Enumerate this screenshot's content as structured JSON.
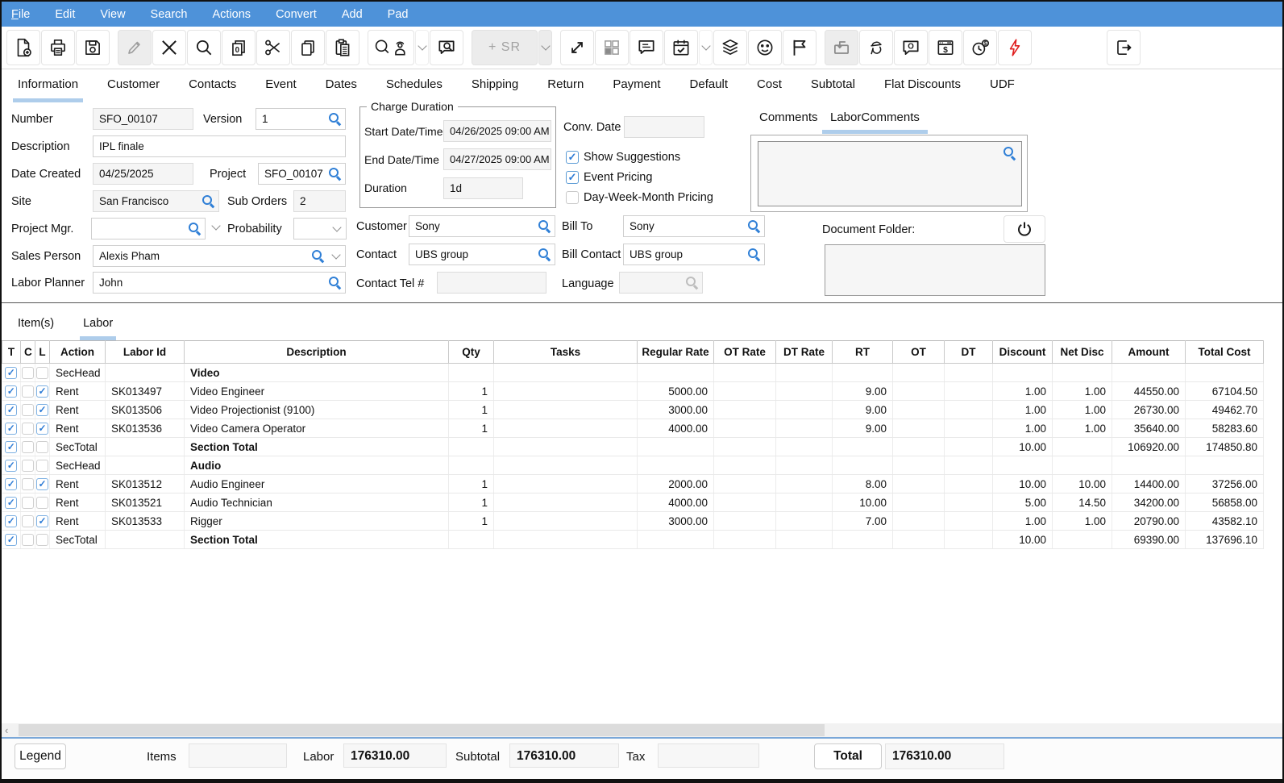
{
  "menu": {
    "items": [
      "File",
      "Edit",
      "View",
      "Search",
      "Actions",
      "Convert",
      "Add",
      "Pad"
    ]
  },
  "toolbar": {
    "sr_label": "+ SR"
  },
  "main_tabs": [
    "Information",
    "Customer",
    "Contacts",
    "Event",
    "Dates",
    "Schedules",
    "Shipping",
    "Return",
    "Payment",
    "Default",
    "Cost",
    "Subtotal",
    "Flat Discounts",
    "UDF"
  ],
  "active_main_tab": "Information",
  "form": {
    "number": {
      "label": "Number",
      "value": "SFO_00107"
    },
    "version": {
      "label": "Version",
      "value": "1"
    },
    "description": {
      "label": "Description",
      "value": "IPL finale"
    },
    "date_created": {
      "label": "Date Created",
      "value": "04/25/2025"
    },
    "project": {
      "label": "Project",
      "value": "SFO_00107"
    },
    "site": {
      "label": "Site",
      "value": "San Francisco"
    },
    "sub_orders": {
      "label": "Sub Orders",
      "value": "2"
    },
    "project_mgr": {
      "label": "Project Mgr.",
      "value": ""
    },
    "probability": {
      "label": "Probability",
      "value": ""
    },
    "sales_person": {
      "label": "Sales Person",
      "value": "Alexis Pham"
    },
    "labor_planner": {
      "label": "Labor Planner",
      "value": "John"
    }
  },
  "charge_duration": {
    "legend": "Charge Duration",
    "start": {
      "label": "Start Date/Time",
      "value": "04/26/2025 09:00 AM"
    },
    "end": {
      "label": "End Date/Time",
      "value": "04/27/2025 09:00 AM"
    },
    "duration": {
      "label": "Duration",
      "value": "1d"
    }
  },
  "options": {
    "conv_date": {
      "label": "Conv. Date",
      "value": ""
    },
    "checkboxes": [
      {
        "label": "Show Suggestions",
        "checked": true
      },
      {
        "label": "Event Pricing",
        "checked": true
      },
      {
        "label": "Day-Week-Month Pricing",
        "checked": false
      }
    ]
  },
  "parties": {
    "customer": {
      "label": "Customer",
      "value": "Sony"
    },
    "contact": {
      "label": "Contact",
      "value": "UBS group"
    },
    "contact_tel": {
      "label": "Contact Tel #",
      "value": ""
    },
    "bill_to": {
      "label": "Bill To",
      "value": "Sony"
    },
    "bill_contact": {
      "label": "Bill Contact",
      "value": "UBS group"
    },
    "language": {
      "label": "Language",
      "value": ""
    }
  },
  "comments": {
    "tabs": [
      "Comments",
      "LaborComments"
    ],
    "active_tab": "LaborComments",
    "text": "",
    "document_folder_label": "Document Folder:",
    "document_folder_value": ""
  },
  "detail_tabs": [
    "Item(s)",
    "Labor"
  ],
  "active_detail_tab": "Labor",
  "table": {
    "columns": [
      "T",
      "C",
      "L",
      "Action",
      "Labor Id",
      "Description",
      "Qty",
      "Tasks",
      "Regular Rate",
      "OT Rate",
      "DT Rate",
      "RT",
      "OT",
      "DT",
      "Discount",
      "Net Disc",
      "Amount",
      "Total Cost"
    ],
    "rows": [
      {
        "t": true,
        "c": false,
        "l": false,
        "action": "SecHead",
        "description": "Video",
        "section": true
      },
      {
        "t": true,
        "c": false,
        "l": true,
        "action": "Rent",
        "labor_id": "SK013497",
        "description": "Video Engineer",
        "qty": "1",
        "regular_rate": "5000.00",
        "rt": "9.00",
        "discount": "1.00",
        "net_disc": "1.00",
        "amount": "44550.00",
        "total_cost": "67104.50"
      },
      {
        "t": true,
        "c": false,
        "l": true,
        "action": "Rent",
        "labor_id": "SK013506",
        "description": "Video Projectionist (9100)",
        "qty": "1",
        "regular_rate": "3000.00",
        "rt": "9.00",
        "discount": "1.00",
        "net_disc": "1.00",
        "amount": "26730.00",
        "total_cost": "49462.70"
      },
      {
        "t": true,
        "c": false,
        "l": true,
        "action": "Rent",
        "labor_id": "SK013536",
        "description": "Video Camera Operator",
        "qty": "1",
        "regular_rate": "4000.00",
        "rt": "9.00",
        "discount": "1.00",
        "net_disc": "1.00",
        "amount": "35640.00",
        "total_cost": "58283.60"
      },
      {
        "t": true,
        "c": false,
        "l": false,
        "action": "SecTotal",
        "description": "Section Total",
        "section": true,
        "discount": "10.00",
        "amount": "106920.00",
        "total_cost": "174850.80"
      },
      {
        "t": true,
        "c": false,
        "l": false,
        "action": "SecHead",
        "description": "Audio",
        "section": true
      },
      {
        "t": true,
        "c": false,
        "l": true,
        "action": "Rent",
        "labor_id": "SK013512",
        "description": "Audio Engineer",
        "qty": "1",
        "regular_rate": "2000.00",
        "rt": "8.00",
        "discount": "10.00",
        "net_disc": "10.00",
        "amount": "14400.00",
        "total_cost": "37256.00"
      },
      {
        "t": true,
        "c": false,
        "l": false,
        "action": "Rent",
        "labor_id": "SK013521",
        "description": "Audio Technician",
        "qty": "1",
        "regular_rate": "4000.00",
        "rt": "10.00",
        "discount": "5.00",
        "net_disc": "14.50",
        "amount": "34200.00",
        "total_cost": "56858.00"
      },
      {
        "t": true,
        "c": false,
        "l": true,
        "action": "Rent",
        "labor_id": "SK013533",
        "description": "Rigger",
        "qty": "1",
        "regular_rate": "3000.00",
        "rt": "7.00",
        "discount": "1.00",
        "net_disc": "1.00",
        "amount": "20790.00",
        "total_cost": "43582.10"
      },
      {
        "t": true,
        "c": false,
        "l": false,
        "action": "SecTotal",
        "description": "Section Total",
        "section": true,
        "discount": "10.00",
        "amount": "69390.00",
        "total_cost": "137696.10"
      }
    ]
  },
  "footer": {
    "legend_label": "Legend",
    "items_label": "Items",
    "items_value": "",
    "labor_label": "Labor",
    "labor_value": "176310.00",
    "subtotal_label": "Subtotal",
    "subtotal_value": "176310.00",
    "tax_label": "Tax",
    "tax_value": "",
    "total_label": "Total",
    "total_value": "176310.00"
  },
  "colors": {
    "menubar_blue": "#4e92d9",
    "tab_underline_blue": "#aecdeb",
    "search_icon_blue": "#2f7fd6",
    "checkbox_blue": "#5b9bd5",
    "rush_red": "#e02020"
  }
}
